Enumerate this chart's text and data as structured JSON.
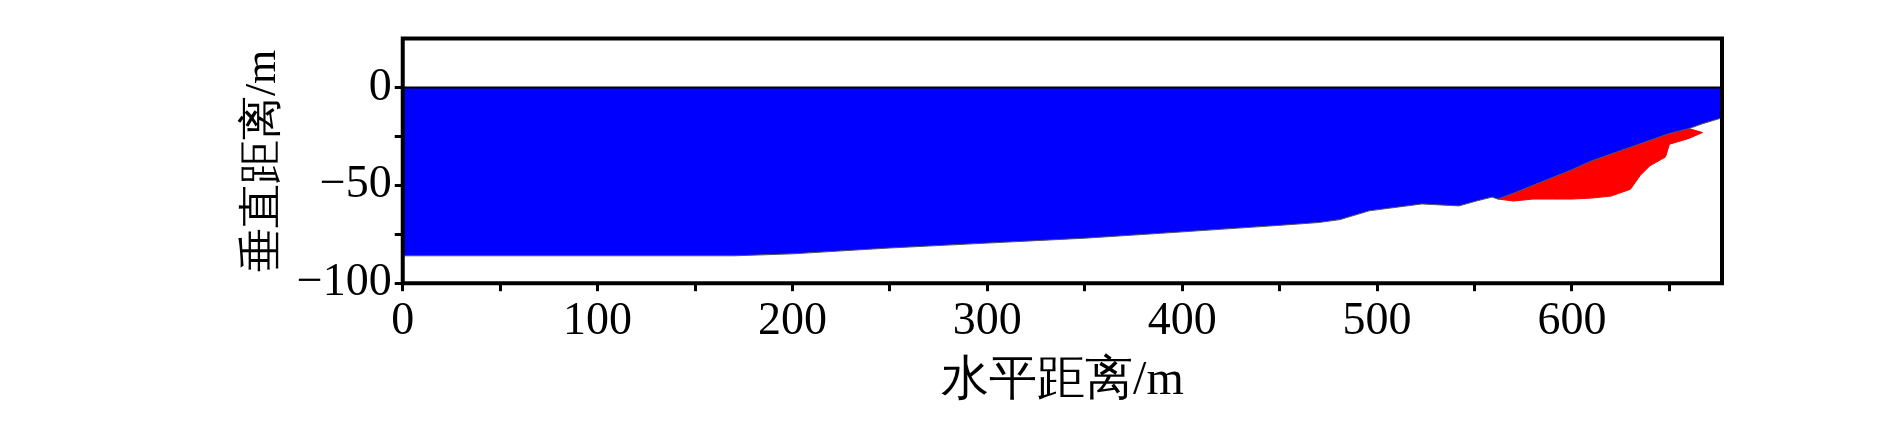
{
  "chart_data": {
    "type": "area",
    "xlabel": "水平距离/m",
    "ylabel": "垂直距离/m",
    "xlim": [
      0,
      677
    ],
    "ylim": [
      -100,
      25
    ],
    "xticks": [
      0,
      {
        "value": 50,
        "label": null
      },
      100,
      {
        "value": 150,
        "label": null
      },
      200,
      {
        "value": 250,
        "label": null
      },
      300,
      {
        "value": 350,
        "label": null
      },
      400,
      {
        "value": 450,
        "label": null
      },
      500,
      {
        "value": 550,
        "label": null
      },
      600,
      {
        "value": 650,
        "label": null
      }
    ],
    "yticks": [
      -100,
      {
        "value": -75,
        "label": null
      },
      -50,
      {
        "value": -25,
        "label": null
      },
      0
    ],
    "grid": false,
    "legend": false,
    "ref_lines": [
      {
        "axis": "y",
        "value": 0,
        "color": "#000000"
      }
    ],
    "series": [
      {
        "color": "#0000ff",
        "x": [
          0,
          50,
          100,
          150,
          170,
          200,
          250,
          300,
          350,
          389,
          449,
          470,
          481,
          496,
          523,
          542,
          551,
          559,
          562,
          570,
          580,
          590,
          600,
          610,
          620,
          630,
          640,
          650,
          660,
          667,
          677
        ],
        "values": [
          -86,
          -86,
          -86,
          -86,
          -86,
          -85,
          -82,
          -79.5,
          -77,
          -74.5,
          -70.5,
          -69,
          -67.5,
          -63,
          -59.5,
          -60.5,
          -58,
          -56,
          -57,
          -54,
          -50,
          -46,
          -42,
          -37.5,
          -34,
          -30.5,
          -27,
          -23.5,
          -21,
          -18.5,
          -15.5
        ]
      },
      {
        "color": "#ff0000",
        "x": [
          562,
          570,
          580,
          590,
          600,
          610,
          620,
          630,
          640,
          650,
          660,
          667,
          660,
          650,
          648,
          640,
          635,
          630,
          620,
          610,
          600,
          590,
          580,
          570,
          562
        ],
        "values": [
          -57,
          -54,
          -50,
          -46,
          -42,
          -37.5,
          -34,
          -30.5,
          -27,
          -23.5,
          -21,
          -23,
          -26,
          -29,
          -35.5,
          -40,
          -45,
          -52,
          -55.5,
          -56.5,
          -57,
          -57,
          -57,
          -58,
          -57
        ]
      }
    ]
  }
}
